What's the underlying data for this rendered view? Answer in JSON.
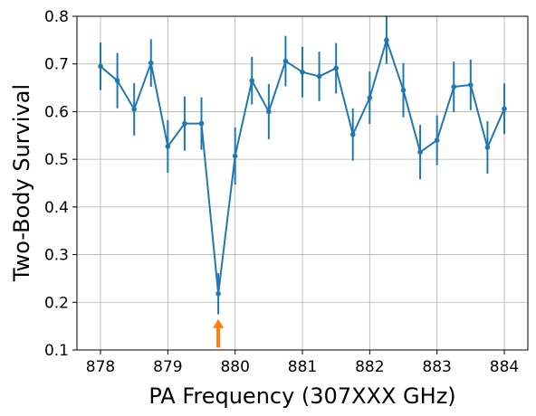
{
  "chart_data": {
    "type": "line",
    "xlabel": "PA Frequency (307XXX GHz)",
    "ylabel": "Two-Body Survival",
    "xlim": [
      877.65,
      884.35
    ],
    "ylim": [
      0.1,
      0.8
    ],
    "xticks": [
      878,
      879,
      880,
      881,
      882,
      883,
      884
    ],
    "yticks": [
      0.1,
      0.2,
      0.3,
      0.4,
      0.5,
      0.6,
      0.7,
      0.8
    ],
    "xtick_labels": [
      "878",
      "879",
      "880",
      "881",
      "882",
      "883",
      "884"
    ],
    "ytick_labels": [
      "0.1",
      "0.2",
      "0.3",
      "0.4",
      "0.5",
      "0.6",
      "0.7",
      "0.8"
    ],
    "grid": true,
    "series_color": "#1f77b4",
    "annotation_color": "#ff7f0e",
    "annotation": {
      "type": "arrow",
      "x": 879.75,
      "y_tail": 0.105,
      "y_head": 0.165
    },
    "x": [
      878.0,
      878.25,
      878.5,
      878.75,
      879.0,
      879.25,
      879.5,
      879.75,
      880.0,
      880.25,
      880.5,
      880.75,
      881.0,
      881.25,
      881.5,
      881.75,
      882.0,
      882.25,
      882.5,
      882.75,
      883.0,
      883.25,
      883.5,
      883.75,
      884.0
    ],
    "y": [
      0.695,
      0.665,
      0.605,
      0.702,
      0.527,
      0.575,
      0.575,
      0.218,
      0.507,
      0.665,
      0.6,
      0.706,
      0.683,
      0.674,
      0.691,
      0.552,
      0.629,
      0.75,
      0.645,
      0.515,
      0.54,
      0.652,
      0.656,
      0.525,
      0.606
    ],
    "yerr": [
      0.05,
      0.058,
      0.055,
      0.05,
      0.055,
      0.057,
      0.055,
      0.043,
      0.06,
      0.05,
      0.058,
      0.053,
      0.053,
      0.052,
      0.053,
      0.055,
      0.055,
      0.05,
      0.057,
      0.057,
      0.052,
      0.053,
      0.053,
      0.055,
      0.053
    ]
  }
}
